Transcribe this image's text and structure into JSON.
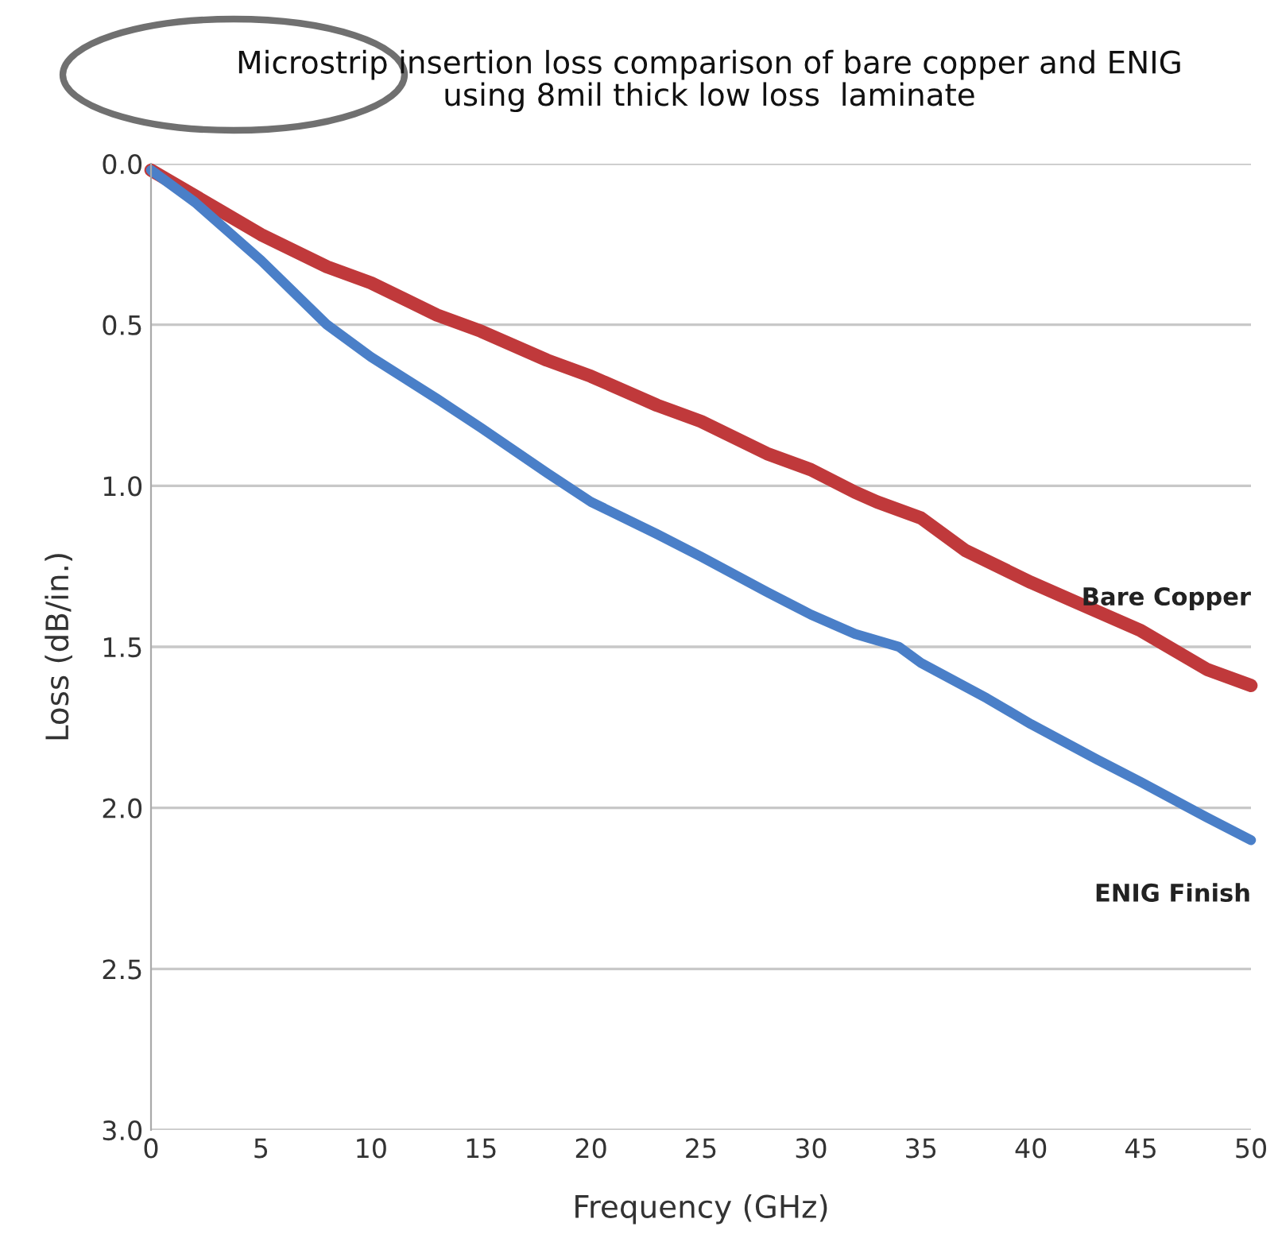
{
  "chart_data": {
    "type": "line",
    "title": "Microstrip insertion loss comparison of bare copper and ENIG\nusing 8mil thick low loss  laminate",
    "xlabel": "Frequency (GHz)",
    "ylabel": "Loss (dB/in.)",
    "series": [
      {
        "name": "Bare Copper",
        "color": "#c0393b",
        "x": [
          0,
          2,
          5,
          8,
          10,
          13,
          15,
          18,
          20,
          23,
          25,
          28,
          30,
          32,
          33,
          35,
          37,
          40,
          43,
          45,
          48,
          50
        ],
        "values": [
          0.02,
          0.1,
          0.22,
          0.32,
          0.37,
          0.47,
          0.52,
          0.61,
          0.66,
          0.75,
          0.8,
          0.9,
          0.95,
          1.02,
          1.05,
          1.1,
          1.2,
          1.3,
          1.39,
          1.45,
          1.57,
          1.62
        ]
      },
      {
        "name": "ENIG Finish",
        "color": "#4a7fc8",
        "x": [
          0,
          2,
          5,
          8,
          10,
          13,
          15,
          18,
          20,
          23,
          25,
          28,
          30,
          32,
          34,
          35,
          38,
          40,
          43,
          45,
          48,
          50
        ],
        "values": [
          0.02,
          0.12,
          0.3,
          0.5,
          0.6,
          0.73,
          0.82,
          0.96,
          1.05,
          1.15,
          1.22,
          1.33,
          1.4,
          1.46,
          1.5,
          1.55,
          1.66,
          1.74,
          1.85,
          1.92,
          2.03,
          2.1
        ]
      }
    ],
    "xlim": [
      0,
      50
    ],
    "ylim": [
      3.0,
      0.0
    ],
    "xticks": [
      0,
      5,
      10,
      15,
      20,
      25,
      30,
      35,
      40,
      45,
      50
    ],
    "yticks": [
      {
        "value": 0,
        "label": "0.0"
      },
      {
        "value": 0.5,
        "label": "0.5"
      },
      {
        "value": 1,
        "label": "1.0"
      },
      {
        "value": 1.5,
        "label": "1.5"
      },
      {
        "value": 2,
        "label": "2.0"
      },
      {
        "value": 2.5,
        "label": "2.5"
      },
      {
        "value": 3,
        "label": "3.0"
      }
    ],
    "grid": "y",
    "line_style": "solid",
    "marker": "none"
  }
}
